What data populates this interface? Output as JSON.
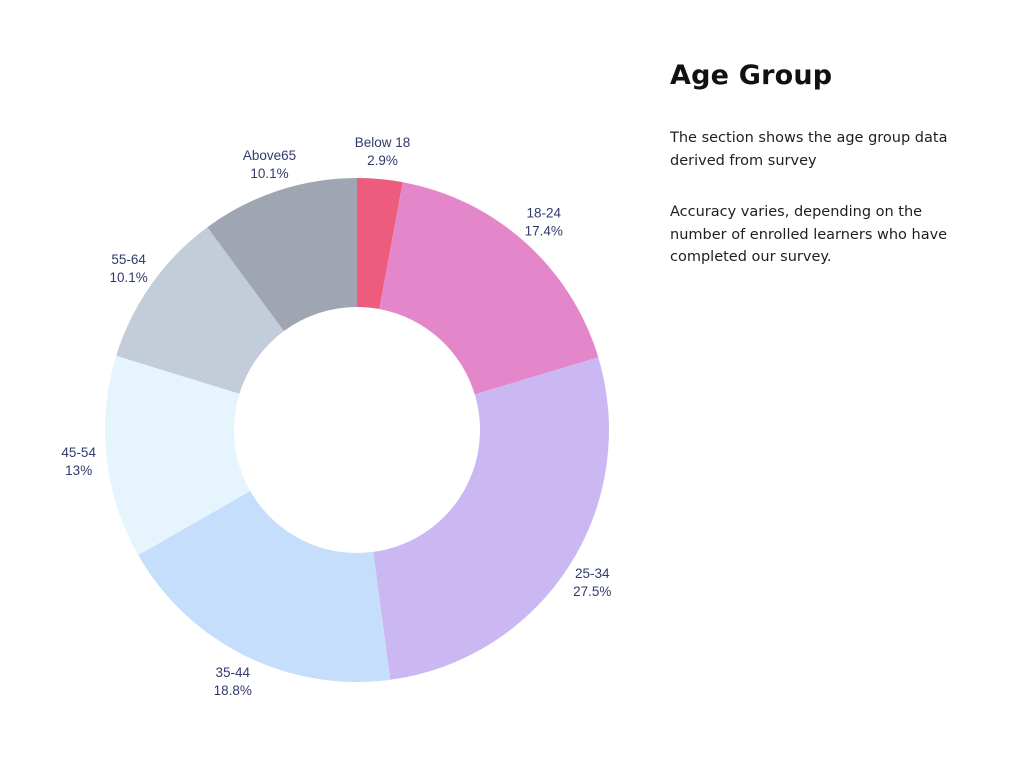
{
  "panel": {
    "title": "Age Group",
    "description": "The section shows the age group data\nderived from survey",
    "note": "Accuracy varies, depending on the\nnumber of enrolled learners who have\ncompleted our survey."
  },
  "chart_data": {
    "type": "pie",
    "subtype": "donut",
    "title": "Age Group",
    "categories": [
      "Below 18",
      "18-24",
      "25-34",
      "35-44",
      "45-54",
      "55-64",
      "Above65"
    ],
    "values": [
      2.9,
      17.4,
      27.5,
      18.8,
      13,
      10.1,
      10.1
    ],
    "value_labels": [
      "2.9%",
      "17.4%",
      "27.5%",
      "18.8%",
      "13%",
      "10.1%",
      "10.1%"
    ],
    "colors": [
      "#ED5C7D",
      "#E487CA",
      "#CBB8F3",
      "#C5DEFB",
      "#E6F4FD",
      "#C3CCD9",
      "#9FA5B1"
    ],
    "label_color": "#333A6D",
    "start_angle_deg": 0,
    "direction": "clockwise",
    "legend_position": "none",
    "background": "#ffffff"
  }
}
